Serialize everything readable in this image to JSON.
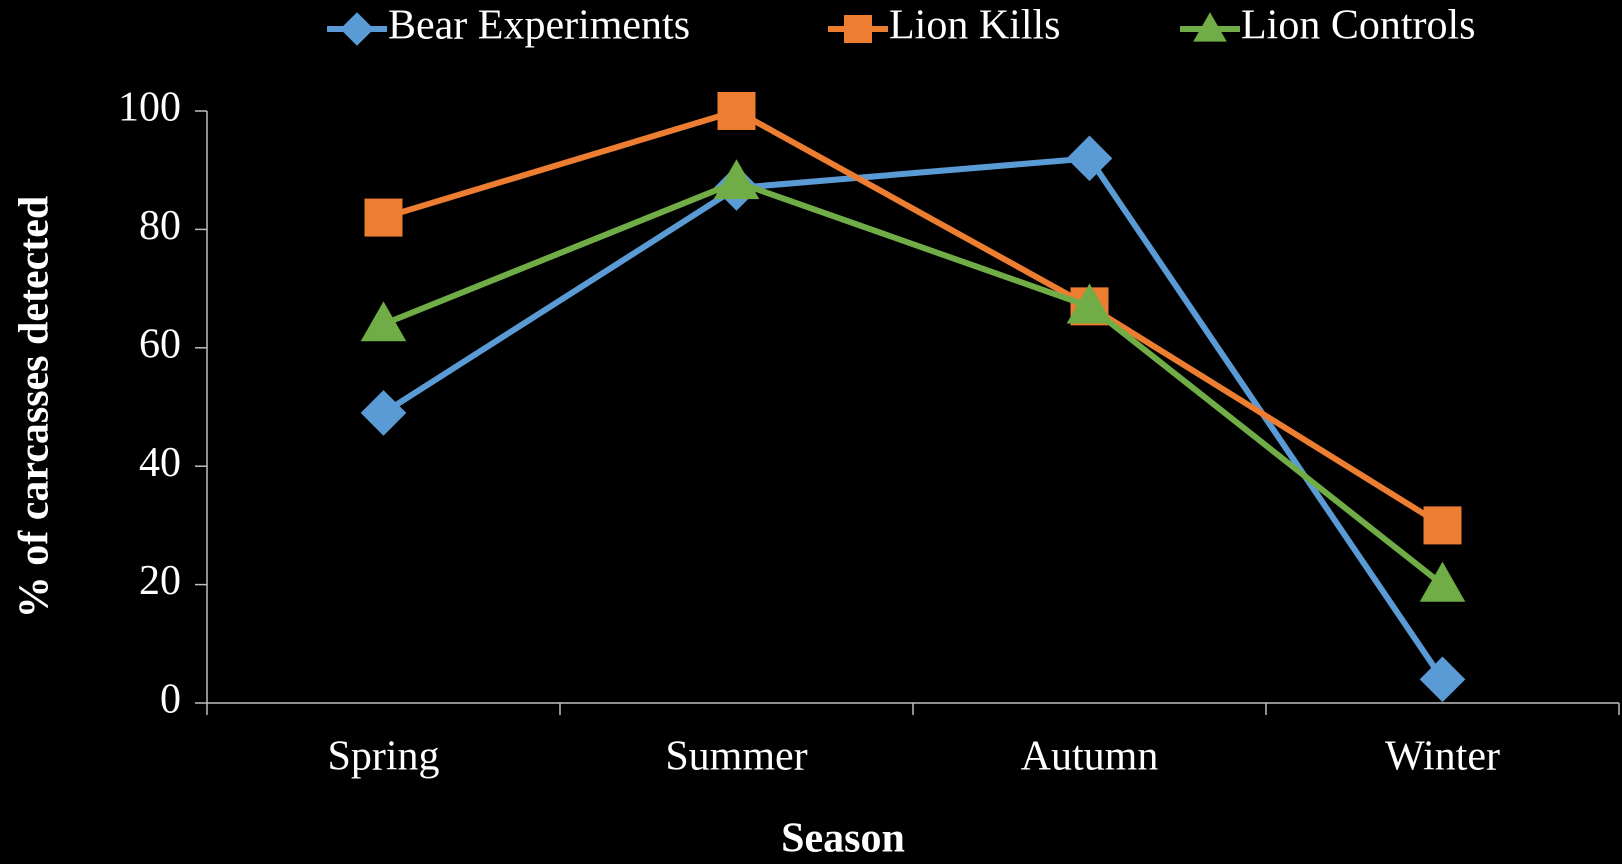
{
  "chart_data": {
    "type": "line",
    "xlabel": "Season",
    "ylabel": "% of carcasses detected",
    "categories": [
      "Spring",
      "Summer",
      "Autumn",
      "Winter"
    ],
    "series": [
      {
        "name": "Bear Experiments",
        "color": "#5b9bd5",
        "marker": "diamond",
        "values": [
          49,
          87,
          92,
          4
        ]
      },
      {
        "name": "Lion Kills",
        "color": "#ed7d31",
        "marker": "square",
        "values": [
          82,
          100,
          67,
          30
        ]
      },
      {
        "name": "Lion Controls",
        "color": "#70ad47",
        "marker": "triangle",
        "values": [
          64,
          88,
          67,
          20
        ]
      }
    ],
    "ylim": [
      0,
      100
    ],
    "yticks": [
      0,
      20,
      40,
      60,
      80,
      100
    ],
    "grid": false,
    "legend": "top"
  }
}
